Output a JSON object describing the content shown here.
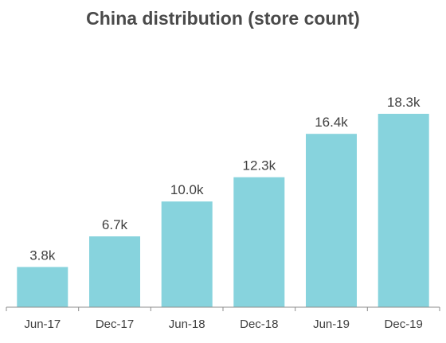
{
  "chart_data": {
    "type": "bar",
    "title": "China distribution (store count)",
    "categories": [
      "Jun-17",
      "Dec-17",
      "Jun-18",
      "Dec-18",
      "Jun-19",
      "Dec-19"
    ],
    "values": [
      3.8,
      6.7,
      10.0,
      12.3,
      16.4,
      18.3
    ],
    "data_labels": [
      "3.8k",
      "6.7k",
      "10.0k",
      "12.3k",
      "16.4k",
      "18.3k"
    ],
    "bar_color": "#87D3DD",
    "axis_color": "#8c8c8c",
    "ylim": [
      0,
      18.3
    ],
    "grid": false,
    "xlabel": "",
    "ylabel": ""
  }
}
